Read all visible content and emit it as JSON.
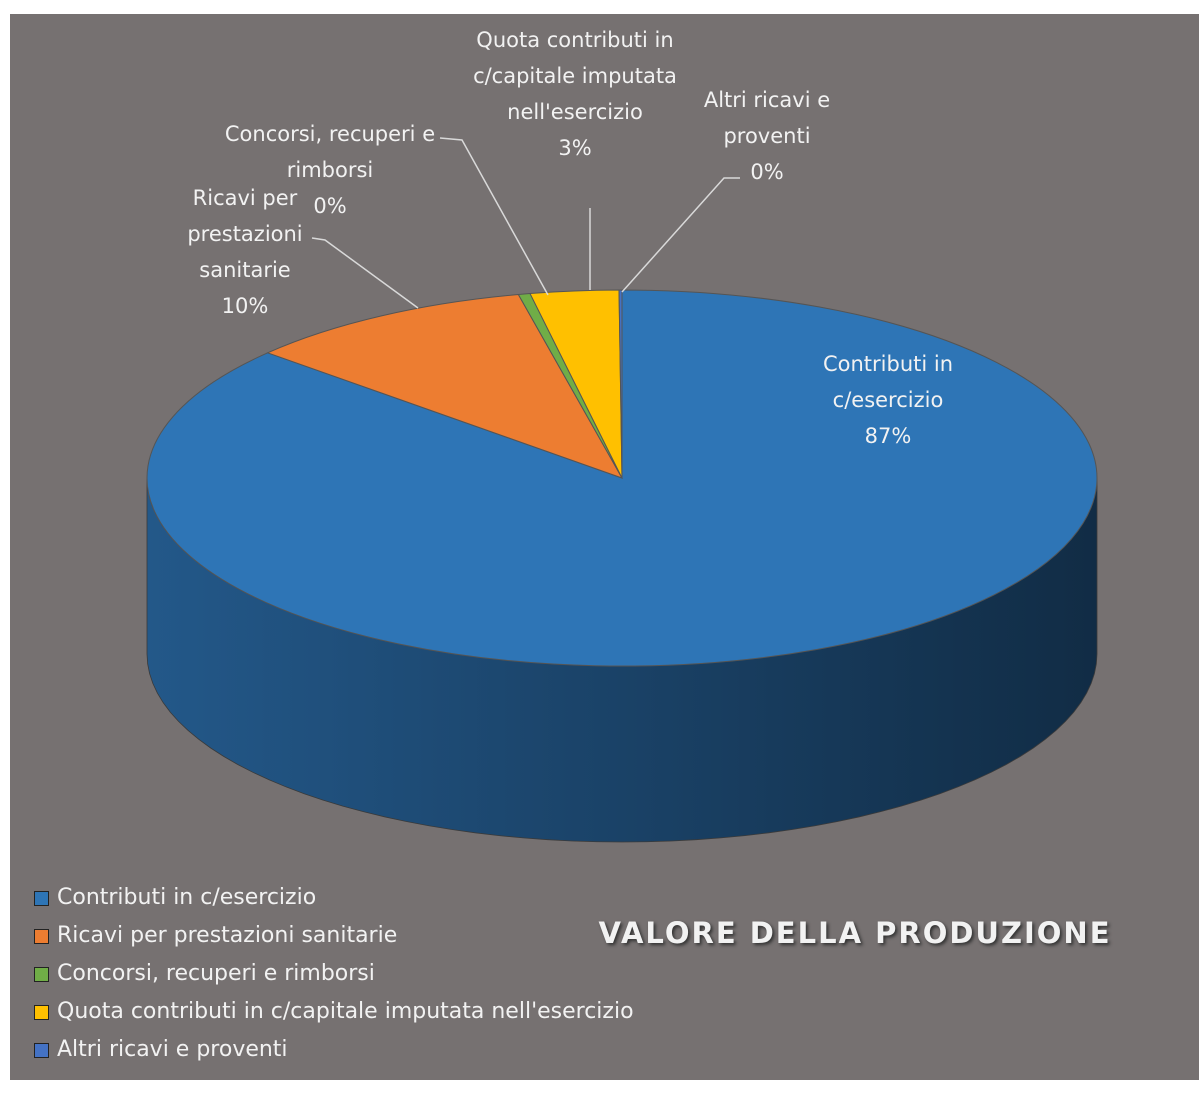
{
  "chart_data": {
    "type": "pie3d",
    "title": "VALORE DELLA PRODUZIONE",
    "categories": [
      "Contributi in c/esercizio",
      "Ricavi per prestazioni sanitarie",
      "Concorsi, recuperi e rimborsi",
      "Quota contributi in c/capitale imputata nell'esercizio",
      "Altri ricavi e proventi"
    ],
    "values": [
      86.6,
      9.9,
      0.4,
      3.0,
      0.1
    ],
    "value_labels": [
      "87%",
      "10%",
      "0%",
      "3%",
      "0%"
    ],
    "colors": [
      "#2e75b6",
      "#ed7d31",
      "#70ad47",
      "#ffc000",
      "#4472c4"
    ],
    "legend": "bottom-left"
  }
}
